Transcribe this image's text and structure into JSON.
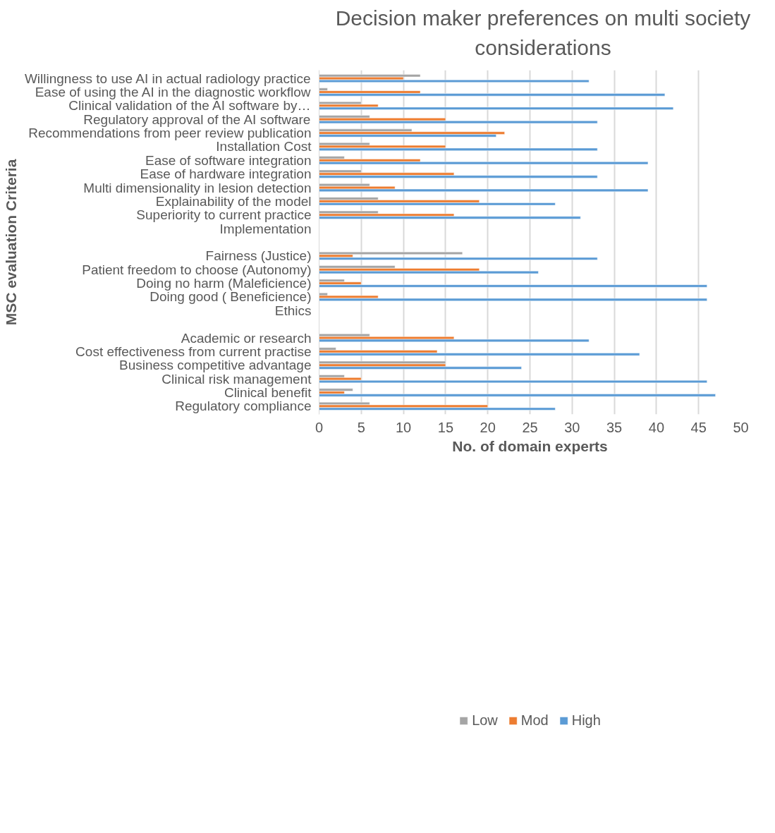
{
  "chart_data": {
    "type": "bar",
    "orientation": "horizontal",
    "title": "Decision maker preferences on multi society\nconsiderations",
    "xlabel": "No. of domain experts",
    "ylabel": "MSC evaluation Criteria",
    "categories": [
      "Willingness to use AI in actual radiology practice",
      "Ease of using the AI in the diagnostic workflow",
      "Clinical validation of the AI software by…",
      "Regulatory approval of the AI software",
      "Recommendations from peer review publication",
      "Installation Cost",
      "Ease of software integration",
      "Ease of hardware integration",
      "Multi dimensionality in lesion detection",
      "Explainability of the model",
      "Superiority to current practice",
      "Implementation",
      null,
      "Fairness (Justice)",
      "Patient freedom to choose (Autonomy)",
      "Doing no harm (Maleficience)",
      "Doing good ( Beneficience)",
      "Ethics",
      null,
      "Academic or research",
      "Cost effectiveness from current practise",
      "Business competitive advantage",
      "Clinical risk management",
      "Clinical benefit",
      "Regulatory compliance"
    ],
    "series": [
      {
        "name": "Low",
        "color": "#a5a5a5",
        "values": [
          12,
          1,
          5,
          6,
          11,
          6,
          3,
          5,
          6,
          7,
          7,
          null,
          null,
          17,
          9,
          3,
          1,
          null,
          null,
          6,
          2,
          15,
          3,
          4,
          6
        ]
      },
      {
        "name": "Mod",
        "color": "#ed7d31",
        "values": [
          10,
          12,
          7,
          15,
          22,
          15,
          12,
          16,
          9,
          19,
          16,
          null,
          null,
          4,
          19,
          5,
          7,
          null,
          null,
          16,
          14,
          15,
          5,
          3,
          20
        ]
      },
      {
        "name": "High",
        "color": "#5b9bd5",
        "values": [
          32,
          41,
          42,
          33,
          21,
          33,
          39,
          33,
          39,
          28,
          31,
          null,
          null,
          33,
          26,
          46,
          46,
          null,
          null,
          32,
          38,
          24,
          46,
          47,
          28
        ]
      }
    ],
    "xlim": [
      0,
      50
    ],
    "xticks": [
      0,
      5,
      10,
      15,
      20,
      25,
      30,
      35,
      40,
      45,
      50
    ],
    "grid": "x",
    "legend": "bottom"
  }
}
